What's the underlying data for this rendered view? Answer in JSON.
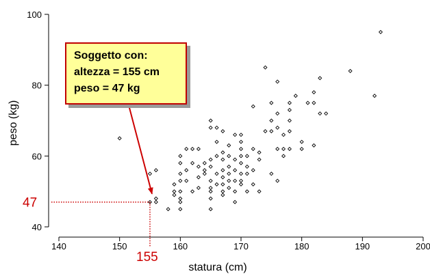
{
  "chart_data": {
    "type": "scatter",
    "title": "",
    "xlabel": "statura (cm)",
    "ylabel": "peso (kg)",
    "xlim": [
      140,
      200
    ],
    "ylim": [
      40,
      100
    ],
    "xticks": [
      140,
      150,
      160,
      170,
      180,
      190,
      200
    ],
    "yticks": [
      40,
      60,
      80,
      100
    ],
    "grid": false,
    "marker": "open-diamond",
    "points": [
      [
        150,
        65
      ],
      [
        155,
        47
      ],
      [
        155,
        55
      ],
      [
        156,
        56
      ],
      [
        156,
        48
      ],
      [
        156,
        47
      ],
      [
        158,
        45
      ],
      [
        159,
        50
      ],
      [
        159,
        52
      ],
      [
        159,
        49
      ],
      [
        160,
        45
      ],
      [
        160,
        47
      ],
      [
        160,
        48
      ],
      [
        160,
        50
      ],
      [
        160,
        53
      ],
      [
        160,
        55
      ],
      [
        160,
        58
      ],
      [
        160,
        60
      ],
      [
        161,
        53
      ],
      [
        161,
        56
      ],
      [
        161,
        62
      ],
      [
        162,
        62
      ],
      [
        162,
        58
      ],
      [
        162,
        50
      ],
      [
        163,
        51
      ],
      [
        163,
        54
      ],
      [
        163,
        57
      ],
      [
        163,
        62
      ],
      [
        164,
        55
      ],
      [
        164,
        58
      ],
      [
        164,
        56
      ],
      [
        165,
        45
      ],
      [
        165,
        48
      ],
      [
        165,
        50
      ],
      [
        165,
        51
      ],
      [
        165,
        53
      ],
      [
        165,
        57
      ],
      [
        165,
        59
      ],
      [
        165,
        68
      ],
      [
        165,
        70
      ],
      [
        166,
        52
      ],
      [
        166,
        55
      ],
      [
        166,
        60
      ],
      [
        166,
        64
      ],
      [
        166,
        68
      ],
      [
        167,
        49
      ],
      [
        167,
        50
      ],
      [
        167,
        52
      ],
      [
        167,
        54
      ],
      [
        167,
        56
      ],
      [
        167,
        59
      ],
      [
        167,
        61
      ],
      [
        167,
        67
      ],
      [
        168,
        51
      ],
      [
        168,
        53
      ],
      [
        168,
        55
      ],
      [
        168,
        57
      ],
      [
        168,
        60
      ],
      [
        168,
        63
      ],
      [
        169,
        47
      ],
      [
        169,
        50
      ],
      [
        169,
        53
      ],
      [
        169,
        56
      ],
      [
        169,
        59
      ],
      [
        169,
        66
      ],
      [
        170,
        52
      ],
      [
        170,
        53
      ],
      [
        170,
        55
      ],
      [
        170,
        58
      ],
      [
        170,
        60
      ],
      [
        170,
        62
      ],
      [
        170,
        64
      ],
      [
        170,
        66
      ],
      [
        171,
        50
      ],
      [
        171,
        55
      ],
      [
        171,
        57
      ],
      [
        171,
        60
      ],
      [
        172,
        52
      ],
      [
        172,
        56
      ],
      [
        172,
        62
      ],
      [
        172,
        74
      ],
      [
        173,
        50
      ],
      [
        173,
        59
      ],
      [
        173,
        61
      ],
      [
        174,
        67
      ],
      [
        174,
        85
      ],
      [
        175,
        55
      ],
      [
        175,
        67
      ],
      [
        175,
        70
      ],
      [
        175,
        75
      ],
      [
        176,
        53
      ],
      [
        176,
        62
      ],
      [
        176,
        68
      ],
      [
        176,
        72
      ],
      [
        176,
        81
      ],
      [
        177,
        60
      ],
      [
        177,
        62
      ],
      [
        177,
        66
      ],
      [
        178,
        62
      ],
      [
        178,
        67
      ],
      [
        178,
        70
      ],
      [
        178,
        73
      ],
      [
        178,
        75
      ],
      [
        179,
        77
      ],
      [
        180,
        62
      ],
      [
        180,
        64
      ],
      [
        181,
        75
      ],
      [
        182,
        63
      ],
      [
        182,
        75
      ],
      [
        182,
        78
      ],
      [
        183,
        72
      ],
      [
        183,
        82
      ],
      [
        184,
        72
      ],
      [
        188,
        84
      ],
      [
        192,
        77
      ],
      [
        193,
        95
      ]
    ]
  },
  "annotation": {
    "lines": [
      "Soggetto con:",
      "altezza = 155 cm",
      "peso = 47 kg"
    ],
    "point": [
      155,
      47
    ],
    "x_ref_label": "155",
    "y_ref_label": "47",
    "color": "#cc0000",
    "box_fill": "#ffff99"
  }
}
